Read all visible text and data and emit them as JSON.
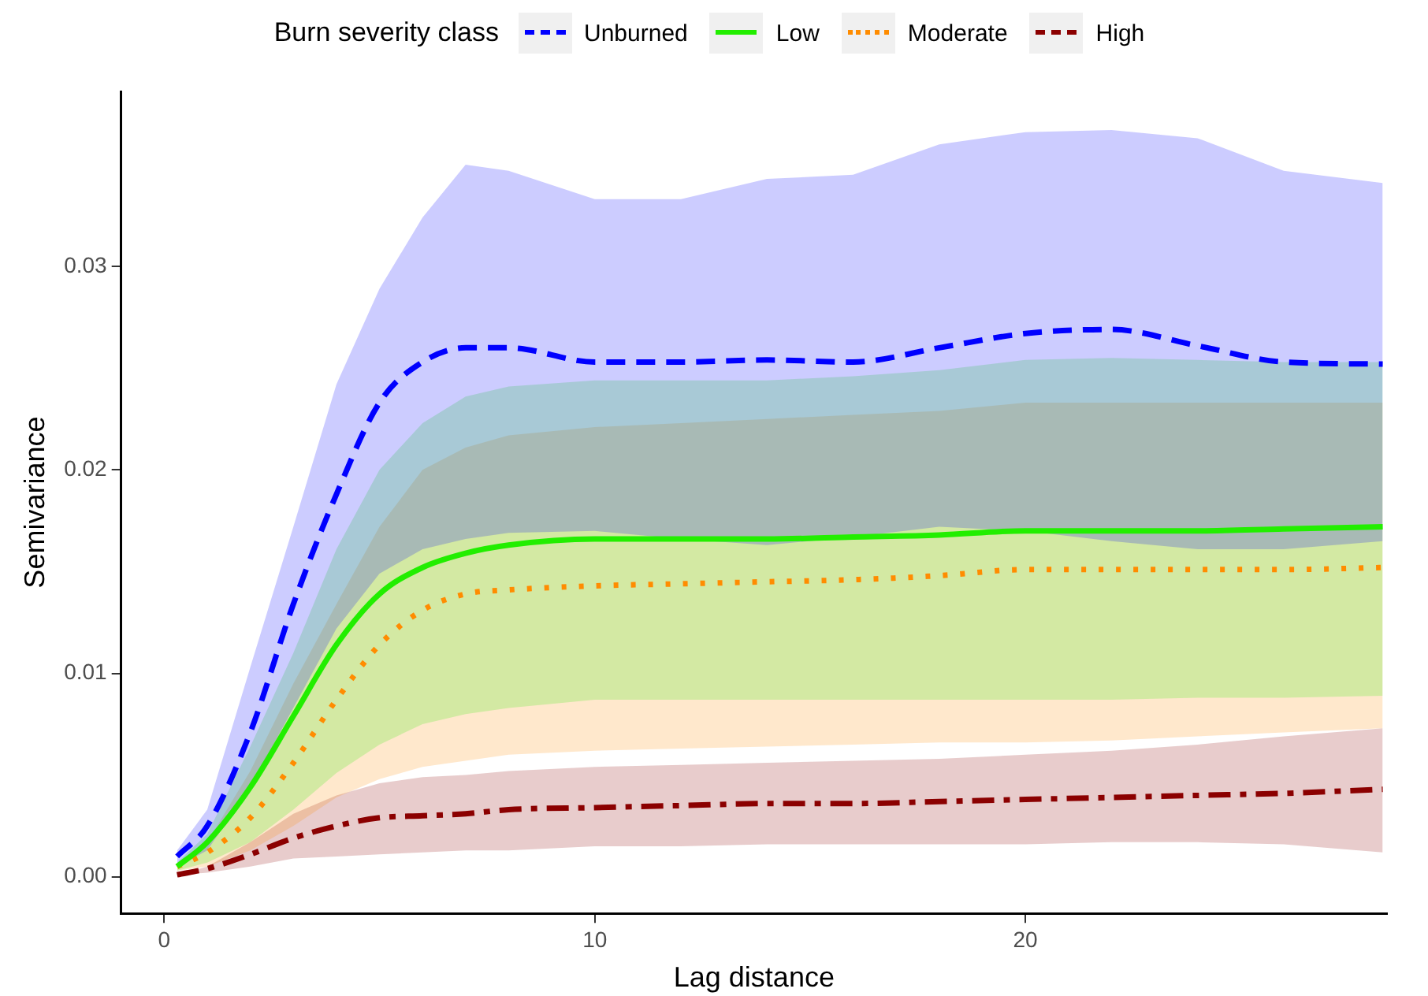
{
  "chart_data": {
    "type": "line",
    "xlabel": "Lag distance",
    "ylabel": "Semivariance",
    "legend_title": "Burn severity class",
    "legend": "top",
    "xlim": [
      -1,
      28.4
    ],
    "xticks": [
      0,
      10,
      20
    ],
    "ylim": [
      -0.0018,
      0.0386
    ],
    "yticks": [
      {
        "value": 0,
        "label": "0.00"
      },
      {
        "value": 0.01,
        "label": "0.01"
      },
      {
        "value": 0.02,
        "label": "0.02"
      },
      {
        "value": 0.03,
        "label": "0.03"
      }
    ],
    "grid": false,
    "series": [
      {
        "name": "Unburned",
        "color": "#0000ff",
        "line_style": "dashed",
        "x": [
          0.3,
          1,
          2,
          3,
          4,
          5,
          6,
          7,
          8,
          10,
          12,
          14,
          16,
          18,
          20,
          22,
          24,
          26,
          28.3
        ],
        "values": [
          0.001,
          0.0025,
          0.0071,
          0.0134,
          0.0188,
          0.0233,
          0.0253,
          0.026,
          0.026,
          0.0253,
          0.0253,
          0.0254,
          0.0253,
          0.026,
          0.0267,
          0.0269,
          0.0261,
          0.0253,
          0.0252
        ],
        "upper": [
          0.0013,
          0.0033,
          0.0103,
          0.0172,
          0.0242,
          0.0289,
          0.0324,
          0.035,
          0.0347,
          0.0333,
          0.0333,
          0.0343,
          0.0345,
          0.036,
          0.0366,
          0.0367,
          0.0363,
          0.0347,
          0.0341
        ],
        "lower": [
          0.0005,
          0.0013,
          0.0044,
          0.0083,
          0.0122,
          0.0149,
          0.0161,
          0.0166,
          0.0169,
          0.017,
          0.0166,
          0.0163,
          0.0167,
          0.0172,
          0.017,
          0.0165,
          0.0161,
          0.0161,
          0.0165
        ]
      },
      {
        "name": "Low",
        "color": "#22ee00",
        "line_style": "solid",
        "x": [
          0.3,
          1,
          2,
          3,
          4,
          5,
          6,
          7,
          8,
          10,
          12,
          14,
          16,
          18,
          20,
          22,
          24,
          26,
          28.3
        ],
        "values": [
          0.0005,
          0.0017,
          0.0044,
          0.0079,
          0.0114,
          0.0139,
          0.0152,
          0.0159,
          0.0163,
          0.0166,
          0.0166,
          0.0166,
          0.0167,
          0.0168,
          0.017,
          0.017,
          0.017,
          0.0171,
          0.0172
        ],
        "upper": [
          0.0007,
          0.0021,
          0.0064,
          0.011,
          0.0161,
          0.02,
          0.0223,
          0.0236,
          0.0241,
          0.0244,
          0.0244,
          0.0244,
          0.0246,
          0.0249,
          0.0254,
          0.0255,
          0.0254,
          0.0253,
          0.0253
        ],
        "lower": [
          0.0003,
          0.0007,
          0.0017,
          0.0033,
          0.0051,
          0.0065,
          0.0075,
          0.008,
          0.0083,
          0.0087,
          0.0087,
          0.0087,
          0.0087,
          0.0087,
          0.0087,
          0.0087,
          0.0088,
          0.0088,
          0.0089
        ]
      },
      {
        "name": "Moderate",
        "color": "#ff8c00",
        "line_style": "dotted",
        "x": [
          0.3,
          1,
          2,
          3,
          4,
          5,
          6,
          7,
          8,
          10,
          12,
          14,
          16,
          18,
          20,
          22,
          24,
          26,
          28.3
        ],
        "values": [
          0.0005,
          0.0012,
          0.0029,
          0.0056,
          0.0087,
          0.0114,
          0.0131,
          0.0139,
          0.0141,
          0.0143,
          0.0144,
          0.0145,
          0.0146,
          0.0148,
          0.0151,
          0.0151,
          0.0151,
          0.0151,
          0.0152
        ],
        "upper": [
          0.0005,
          0.0017,
          0.0052,
          0.0095,
          0.0134,
          0.0172,
          0.02,
          0.0211,
          0.0217,
          0.0221,
          0.0223,
          0.0225,
          0.0227,
          0.0229,
          0.0233,
          0.0233,
          0.0233,
          0.0233,
          0.0233
        ],
        "lower": [
          0.0003,
          0.0005,
          0.0013,
          0.0025,
          0.0039,
          0.0048,
          0.0054,
          0.0057,
          0.006,
          0.0062,
          0.0063,
          0.0064,
          0.0065,
          0.0066,
          0.0066,
          0.0067,
          0.0069,
          0.0071,
          0.0073
        ]
      },
      {
        "name": "High",
        "color": "#8b0000",
        "line_style": "dashdot",
        "x": [
          0.3,
          1,
          2,
          3,
          4,
          5,
          6,
          7,
          8,
          10,
          12,
          14,
          16,
          18,
          20,
          22,
          24,
          26,
          28.3
        ],
        "values": [
          0.0001,
          0.0004,
          0.0011,
          0.0019,
          0.0025,
          0.0029,
          0.003,
          0.0031,
          0.0033,
          0.0034,
          0.0035,
          0.0036,
          0.0036,
          0.0037,
          0.0038,
          0.0039,
          0.004,
          0.0041,
          0.0043
        ],
        "upper": [
          0.0001,
          0.0005,
          0.0017,
          0.0031,
          0.004,
          0.0046,
          0.0049,
          0.005,
          0.0052,
          0.0054,
          0.0055,
          0.0056,
          0.0057,
          0.0058,
          0.006,
          0.0062,
          0.0065,
          0.0069,
          0.0073
        ],
        "lower": [
          0.0001,
          0.0002,
          0.0005,
          0.0009,
          0.001,
          0.0011,
          0.0012,
          0.0013,
          0.0013,
          0.0015,
          0.0015,
          0.0016,
          0.0016,
          0.0016,
          0.0016,
          0.0017,
          0.0017,
          0.0016,
          0.0012
        ]
      }
    ]
  }
}
